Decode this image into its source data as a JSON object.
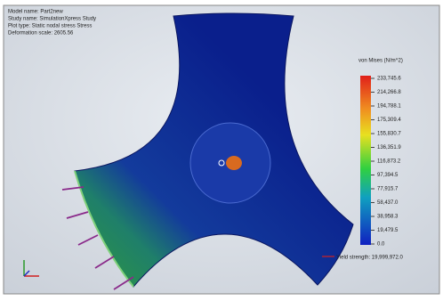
{
  "header": {
    "model_name": "Model name: Part2new",
    "study_name": "Study name: SimulationXpress Study",
    "plot_type": "Plot type: Static nodal stress Stress",
    "deformation_scale": "Deformation scale: 2605.56"
  },
  "legend": {
    "title": "von Mises (N/m^2)",
    "labels": [
      "233,745.6",
      "214,266.8",
      "194,788.1",
      "175,309.4",
      "155,830.7",
      "136,351.9",
      "116,873.2",
      "97,394.5",
      "77,915.7",
      "58,437.0",
      "38,958.3",
      "19,479.5",
      "0.0"
    ],
    "yield": "Yield strength: 19,999,972.0"
  }
}
